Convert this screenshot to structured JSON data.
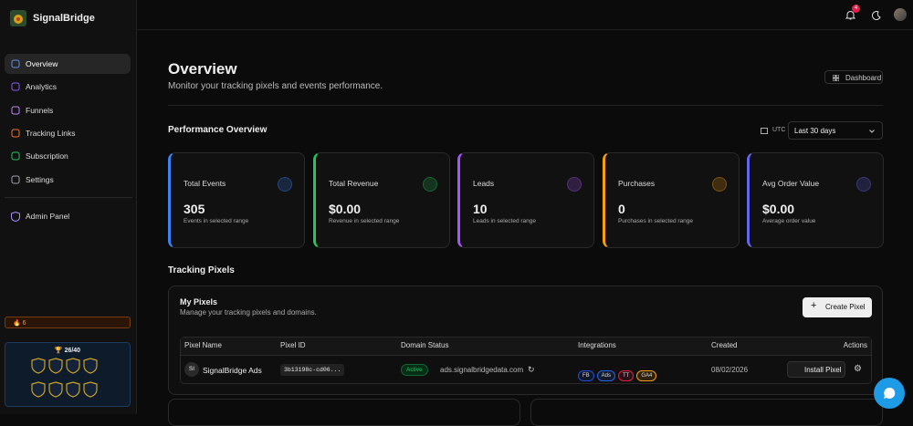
{
  "sidebar": {
    "brand": "SignalBridge",
    "nav": [
      "Overview",
      "Analytics",
      "Funnels",
      "Tracking Links",
      "Subscription",
      "Settings"
    ],
    "admin": "Admin Panel",
    "streak": "6",
    "progress": "26/40"
  },
  "topbar": {
    "notifications": "4"
  },
  "header": {
    "title": "Overview",
    "subtitle": "Monitor your tracking pixels and events performance.",
    "button": "Dashboard"
  },
  "performance": {
    "title": "Performance Overview",
    "timezone": "UTC",
    "range": "Last 30 days",
    "cards": [
      {
        "title": "Total Events",
        "value": "305",
        "note": "Events in selected range"
      },
      {
        "title": "Total Revenue",
        "value": "$0.00",
        "note": "Revenue in selected range"
      },
      {
        "title": "Leads",
        "value": "10",
        "note": "Leads in selected range"
      },
      {
        "title": "Purchases",
        "value": "0",
        "note": "Purchases in selected range"
      },
      {
        "title": "Avg Order Value",
        "value": "$0.00",
        "note": "Average order value"
      }
    ]
  },
  "tracking_pixels": {
    "title": "Tracking Pixels",
    "panel": {
      "title": "My Pixels",
      "subtitle": "Manage your tracking pixels and domains.",
      "button": "Create Pixel"
    },
    "table": {
      "headers": [
        "Pixel Name",
        "Pixel ID",
        "Domain Status",
        "Integrations",
        "Created",
        "Actions"
      ],
      "rows": [
        {
          "initials": "SI",
          "name": "SignalBridge Ads",
          "pixel_id": "3b13198c-cd06...",
          "status": "Active",
          "domain": "ads.signalbridgedata.com",
          "integrations": [
            "FB",
            "Ads",
            "TT",
            "GA4"
          ],
          "created": "08/02/2026",
          "action": "Install Pixel"
        }
      ]
    }
  }
}
